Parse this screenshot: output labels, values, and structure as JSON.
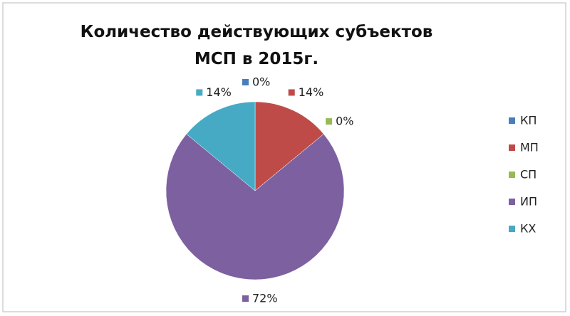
{
  "chart_data": {
    "type": "pie",
    "title": "Количество действующих субъектов МСП в 2015г.",
    "categories": [
      "КП",
      "МП",
      "СП",
      "ИП",
      "КХ"
    ],
    "values": [
      0,
      14,
      0,
      72,
      14
    ],
    "value_labels": [
      "0%",
      "14%",
      "0%",
      "72%",
      "14%"
    ],
    "colors": [
      "#4a7ebb",
      "#be4b48",
      "#98b954",
      "#7d60a0",
      "#46aac5"
    ],
    "legend": "right"
  }
}
